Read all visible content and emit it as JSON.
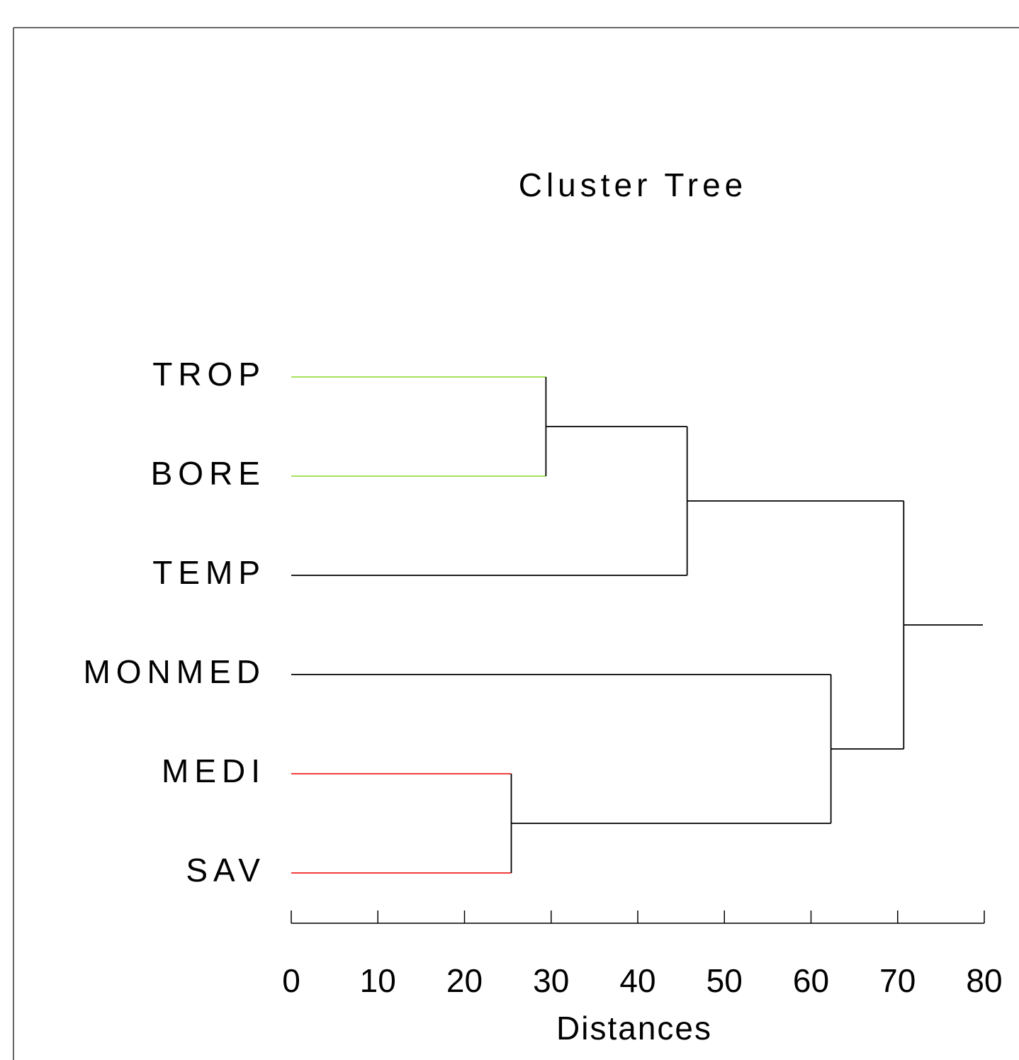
{
  "chart_data": {
    "type": "dendrogram",
    "title": "Cluster Tree",
    "x_label": "Distances",
    "xlim": [
      0,
      80
    ],
    "xticks": [
      0,
      10,
      20,
      30,
      40,
      50,
      60,
      70,
      80
    ],
    "tree": {
      "distance": 70.7,
      "color": "#000000",
      "children": [
        {
          "distance": 45.7,
          "color": "#000000",
          "children": [
            {
              "distance": 29.4,
              "color": "#000000",
              "children": [
                {
                  "label": "TROP",
                  "color": "#99dd44"
                },
                {
                  "label": "BORE",
                  "color": "#99dd44"
                }
              ]
            },
            {
              "label": "TEMP",
              "color": "#000000"
            }
          ]
        },
        {
          "distance": 62.3,
          "color": "#000000",
          "children": [
            {
              "label": "MONMED",
              "color": "#000000"
            },
            {
              "distance": 25.4,
              "color": "#000000",
              "children": [
                {
                  "label": "MEDI",
                  "color": "#ee2222"
                },
                {
                  "label": "SAV",
                  "color": "#ee2222"
                }
              ]
            }
          ]
        }
      ]
    }
  }
}
